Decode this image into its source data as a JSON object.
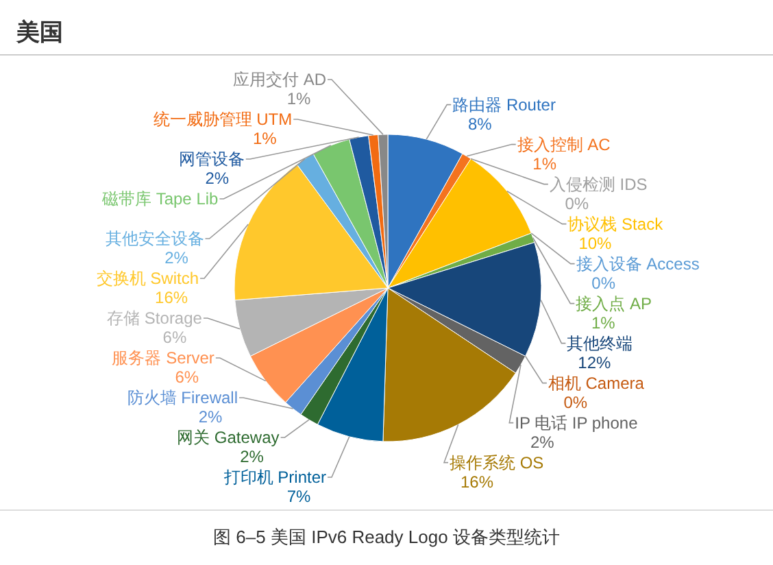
{
  "chart_data": {
    "type": "pie",
    "title": "美国",
    "categories": [
      "路由器 Router",
      "接入控制 AC",
      "入侵检测 IDS",
      "协议栈 Stack",
      "接入设备 Access",
      "接入点 AP",
      "其他终端",
      "相机 Camera",
      "IP 电话 IP phone",
      "操作系统 OS",
      "打印机 Printer",
      "网关 Gateway",
      "防火墙 Firewall",
      "服务器 Server",
      "存储 Storage",
      "交换机 Switch",
      "其他安全设备",
      "磁带库 Tape Lib",
      "网管设备",
      "统一威胁管理 UTM",
      "应用交付 AD"
    ],
    "values": [
      8,
      1,
      0,
      10,
      0,
      1,
      12,
      0,
      2,
      16,
      7,
      2,
      2,
      6,
      6,
      16,
      2,
      4,
      2,
      1,
      1
    ],
    "colors": [
      "#2f74c0",
      "#f4731f",
      "#a0a0a0",
      "#ffc000",
      "#5b9bd5",
      "#70ad47",
      "#17467a",
      "#c55a11",
      "#636363",
      "#a67a05",
      "#00609a",
      "#2e6b30",
      "#5b8fd4",
      "#ff9151",
      "#b4b4b4",
      "#ffc82c",
      "#66afe0",
      "#79c66e",
      "#1f5aa0",
      "#f26b12",
      "#888888"
    ],
    "value_labels": [
      "8%",
      "1%",
      "0%",
      "10%",
      "0%",
      "1%",
      "12%",
      "0%",
      "2%",
      "16%",
      "7%",
      "2%",
      "2%",
      "6%",
      "6%",
      "16%",
      "2%",
      null,
      "2%",
      "1%",
      "1%"
    ],
    "annotations": [
      "图 6–5 美国 IPv6 Ready Logo 设备类型统计"
    ]
  }
}
